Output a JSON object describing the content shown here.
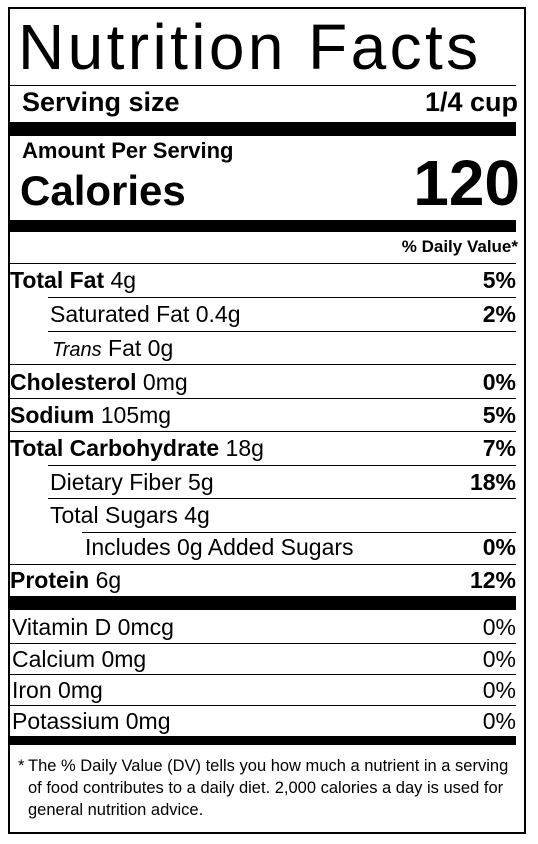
{
  "label": {
    "title": "Nutrition Facts",
    "serving": {
      "label": "Serving size",
      "value": "1/4 cup"
    },
    "amount_per_serving": "Amount Per Serving",
    "calories": {
      "label": "Calories",
      "value": "120"
    },
    "dv_header": "% Daily Value*",
    "nutrients": [
      {
        "name": "Total Fat",
        "amount": "4g",
        "dv": "5%"
      },
      {
        "name": "Saturated Fat",
        "amount": "0.4g",
        "dv": "2%"
      },
      {
        "name_italic": "Trans",
        "name": "Fat",
        "amount": "0g",
        "dv": ""
      },
      {
        "name": "Cholesterol",
        "amount": "0mg",
        "dv": "0%"
      },
      {
        "name": "Sodium",
        "amount": "105mg",
        "dv": "5%"
      },
      {
        "name": "Total Carbohydrate",
        "amount": "18g",
        "dv": "7%"
      },
      {
        "name": "Dietary Fiber",
        "amount": "5g",
        "dv": "18%"
      },
      {
        "name": "Total Sugars",
        "amount": "4g",
        "dv": ""
      },
      {
        "name": "Includes 0g Added Sugars",
        "amount": "",
        "dv": "0%"
      },
      {
        "name": "Protein",
        "amount": "6g",
        "dv": "12%"
      }
    ],
    "vitamins": [
      {
        "name": "Vitamin D",
        "amount": "0mcg",
        "dv": "0%"
      },
      {
        "name": "Calcium",
        "amount": "0mg",
        "dv": "0%"
      },
      {
        "name": "Iron",
        "amount": "0mg",
        "dv": "0%"
      },
      {
        "name": "Potassium",
        "amount": "0mg",
        "dv": "0%"
      }
    ],
    "footnote_star": "*",
    "footnote": "The % Daily Value (DV) tells you how much a nutrient in a serving of food contributes to a daily diet. 2,000 calories a day is used for general nutrition advice."
  }
}
